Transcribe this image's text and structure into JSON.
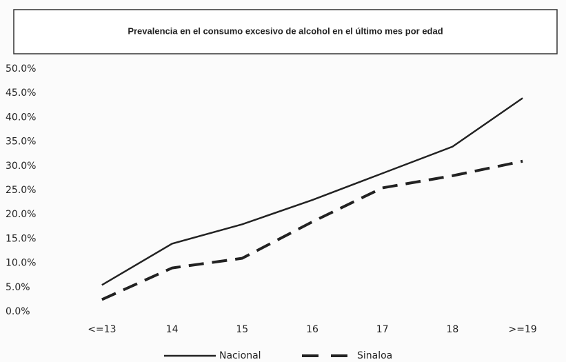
{
  "chart_data": {
    "type": "line",
    "title": "Prevalencia en el consumo excesivo de alcohol en el último mes por edad",
    "categories": [
      "<=13",
      "14",
      "15",
      "16",
      "17",
      "18",
      ">=19"
    ],
    "series": [
      {
        "name": "Nacional",
        "color": "#222222",
        "line_style": "solid",
        "values": [
          5.5,
          14,
          18,
          23,
          28.5,
          34,
          44
        ]
      },
      {
        "name": "Sinaloa",
        "color": "#222222",
        "line_style": "dashed",
        "values": [
          2.5,
          9,
          11,
          18.5,
          25.5,
          28,
          31
        ]
      }
    ],
    "ylim": [
      0,
      50
    ],
    "yticks": [
      {
        "value": 0,
        "label": "0.0%"
      },
      {
        "value": 5,
        "label": "5.0%"
      },
      {
        "value": 10,
        "label": "10.0%"
      },
      {
        "value": 15,
        "label": "15.0%"
      },
      {
        "value": 20,
        "label": "20.0%"
      },
      {
        "value": 25,
        "label": "25.0%"
      },
      {
        "value": 30,
        "label": "30.0%"
      },
      {
        "value": 35,
        "label": "35.0%"
      },
      {
        "value": 40,
        "label": "40.0%"
      },
      {
        "value": 45,
        "label": "45.0%"
      },
      {
        "value": 50,
        "label": "50.0%"
      }
    ],
    "grid": false,
    "legend": "bottom"
  }
}
